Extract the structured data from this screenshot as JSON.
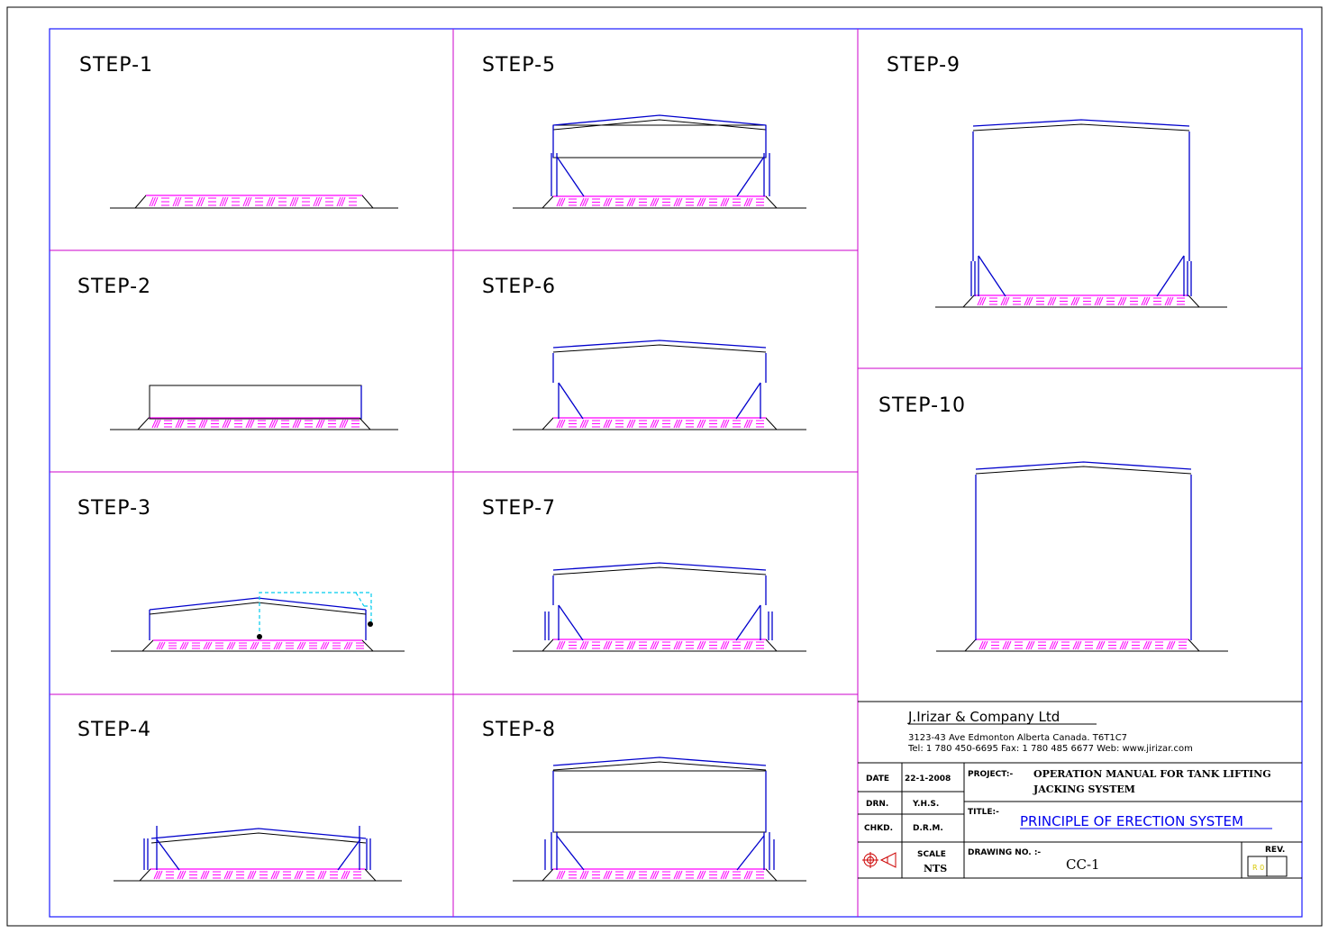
{
  "steps": [
    {
      "label": "STEP-1"
    },
    {
      "label": "STEP-2"
    },
    {
      "label": "STEP-3"
    },
    {
      "label": "STEP-4"
    },
    {
      "label": "STEP-5"
    },
    {
      "label": "STEP-6"
    },
    {
      "label": "STEP-7"
    },
    {
      "label": "STEP-8"
    },
    {
      "label": "STEP-9"
    },
    {
      "label": "STEP-10"
    }
  ],
  "title_block": {
    "company": "J.Irizar & Company Ltd",
    "address": "3123-43 Ave Edmonton Alberta Canada. T6T1C7",
    "contact": "Tel: 1 780 450-6695 Fax: 1 780 485 6677 Web: www.jirizar.com",
    "date_label": "DATE",
    "date_value": "22-1-2008",
    "drn_label": "DRN.",
    "drn_value": "Y.H.S.",
    "chkd_label": "CHKD.",
    "chkd_value": "D.R.M.",
    "project_label": "PROJECT:-",
    "project_line1": "OPERATION MANUAL FOR TANK LIFTING",
    "project_line2": "JACKING SYSTEM",
    "title_label": "TITLE:-",
    "title_value": "PRINCIPLE OF ERECTION SYSTEM",
    "scale_label": "SCALE",
    "scale_value": "NTS",
    "drawing_no_label": "DRAWING NO. :-",
    "drawing_no_value": "CC-1",
    "rev_label": "REV.",
    "rev_value": "R 0",
    "projection_symbol": "third-angle-projection-icon"
  },
  "colors": {
    "frame": "#0000ff",
    "grid": "#cc00cc",
    "structure": "#0000cc",
    "hatch": "#ff00ff",
    "cable": "#00ccee"
  }
}
